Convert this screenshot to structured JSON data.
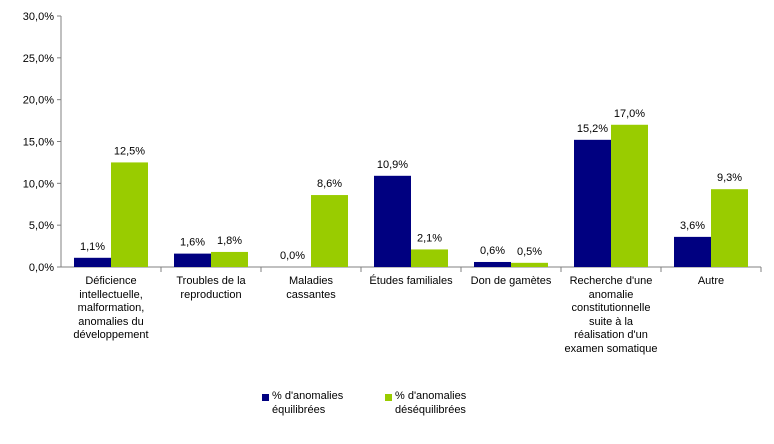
{
  "chart_data": {
    "type": "bar",
    "title": "",
    "xlabel": "",
    "ylabel": "",
    "ylim": [
      0,
      30
    ],
    "yticks": [
      "0,0%",
      "5,0%",
      "10,0%",
      "15,0%",
      "20,0%",
      "25,0%",
      "30,0%"
    ],
    "categories": [
      "Déficience intellectuelle, malformation, anomalies du développement",
      "Troubles de la reproduction",
      "Maladies cassantes",
      "Études familiales",
      "Don de gamètes",
      "Recherche d'une anomalie constitutionnelle suite à la réalisation d'un examen somatique",
      "Autre"
    ],
    "series": [
      {
        "name": "% d'anomalies équilibrées",
        "color": "#000080",
        "values": [
          1.1,
          1.6,
          0.0,
          10.9,
          0.6,
          15.2,
          3.6
        ],
        "labels": [
          "1,1%",
          "1,6%",
          "0,0%",
          "10,9%",
          "0,6%",
          "15,2%",
          "3,6%"
        ]
      },
      {
        "name": "% d'anomalies déséquilibrées",
        "color": "#99cc00",
        "values": [
          12.5,
          1.8,
          8.6,
          2.1,
          0.5,
          17.0,
          9.3
        ],
        "labels": [
          "12,5%",
          "1,8%",
          "8,6%",
          "2,1%",
          "0,5%",
          "17,0%",
          "9,3%"
        ]
      }
    ],
    "grid": false,
    "legend": "bottom"
  }
}
